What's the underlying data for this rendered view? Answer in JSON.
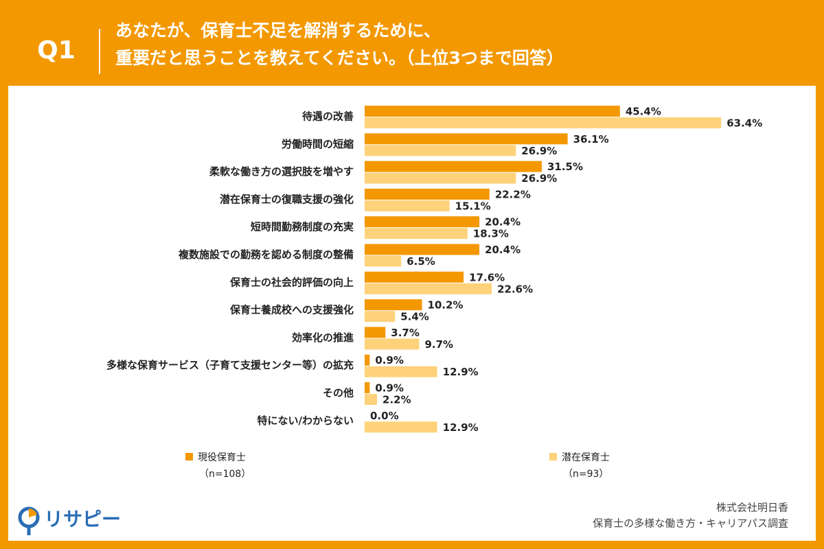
{
  "chart_data": {
    "type": "bar",
    "orientation": "horizontal",
    "question_label": "Q1",
    "title": [
      "あなたが、保育士不足を解消するために、",
      "重要だと思うことを教えてください。（上位3つまで回答）"
    ],
    "categories": [
      "待遇の改善",
      "労働時間の短縮",
      "柔軟な働き方の選択肢を増やす",
      "潜在保育士の復職支援の強化",
      "短時間勤務制度の充実",
      "複数施設での勤務を認める制度の整備",
      "保育士の社会的評価の向上",
      "保育士養成校への支援強化",
      "効率化の推進",
      "多様な保育サービス（子育て支援センター等）の拡充",
      "その他",
      "特にない/わからない"
    ],
    "series": [
      {
        "name": "現役保育士",
        "note": "（n=108）",
        "color": "#f39800",
        "values": [
          45.4,
          36.1,
          31.5,
          22.2,
          20.4,
          20.4,
          17.6,
          10.2,
          3.7,
          0.9,
          0.9,
          0.0
        ],
        "value_labels": [
          "45.4%",
          "36.1%",
          "31.5%",
          "22.2%",
          "20.4%",
          "20.4%",
          "17.6%",
          "10.2%",
          "3.7%",
          "0.9%",
          "0.9%",
          "0.0%"
        ]
      },
      {
        "name": "潜在保育士",
        "note": "（n=93）",
        "color": "#fdd27a",
        "values": [
          63.4,
          26.9,
          26.9,
          15.1,
          18.3,
          6.5,
          22.6,
          5.4,
          9.7,
          12.9,
          2.2,
          12.9
        ],
        "value_labels": [
          "63.4%",
          "26.9%",
          "26.9%",
          "15.1%",
          "18.3%",
          "6.5%",
          "22.6%",
          "5.4%",
          "9.7%",
          "12.9%",
          "2.2%",
          "12.9%"
        ]
      }
    ],
    "source": [
      "株式会社明日香",
      "保育士の多様な働き方・キャリアパス調査"
    ],
    "logo": "リサピー"
  }
}
